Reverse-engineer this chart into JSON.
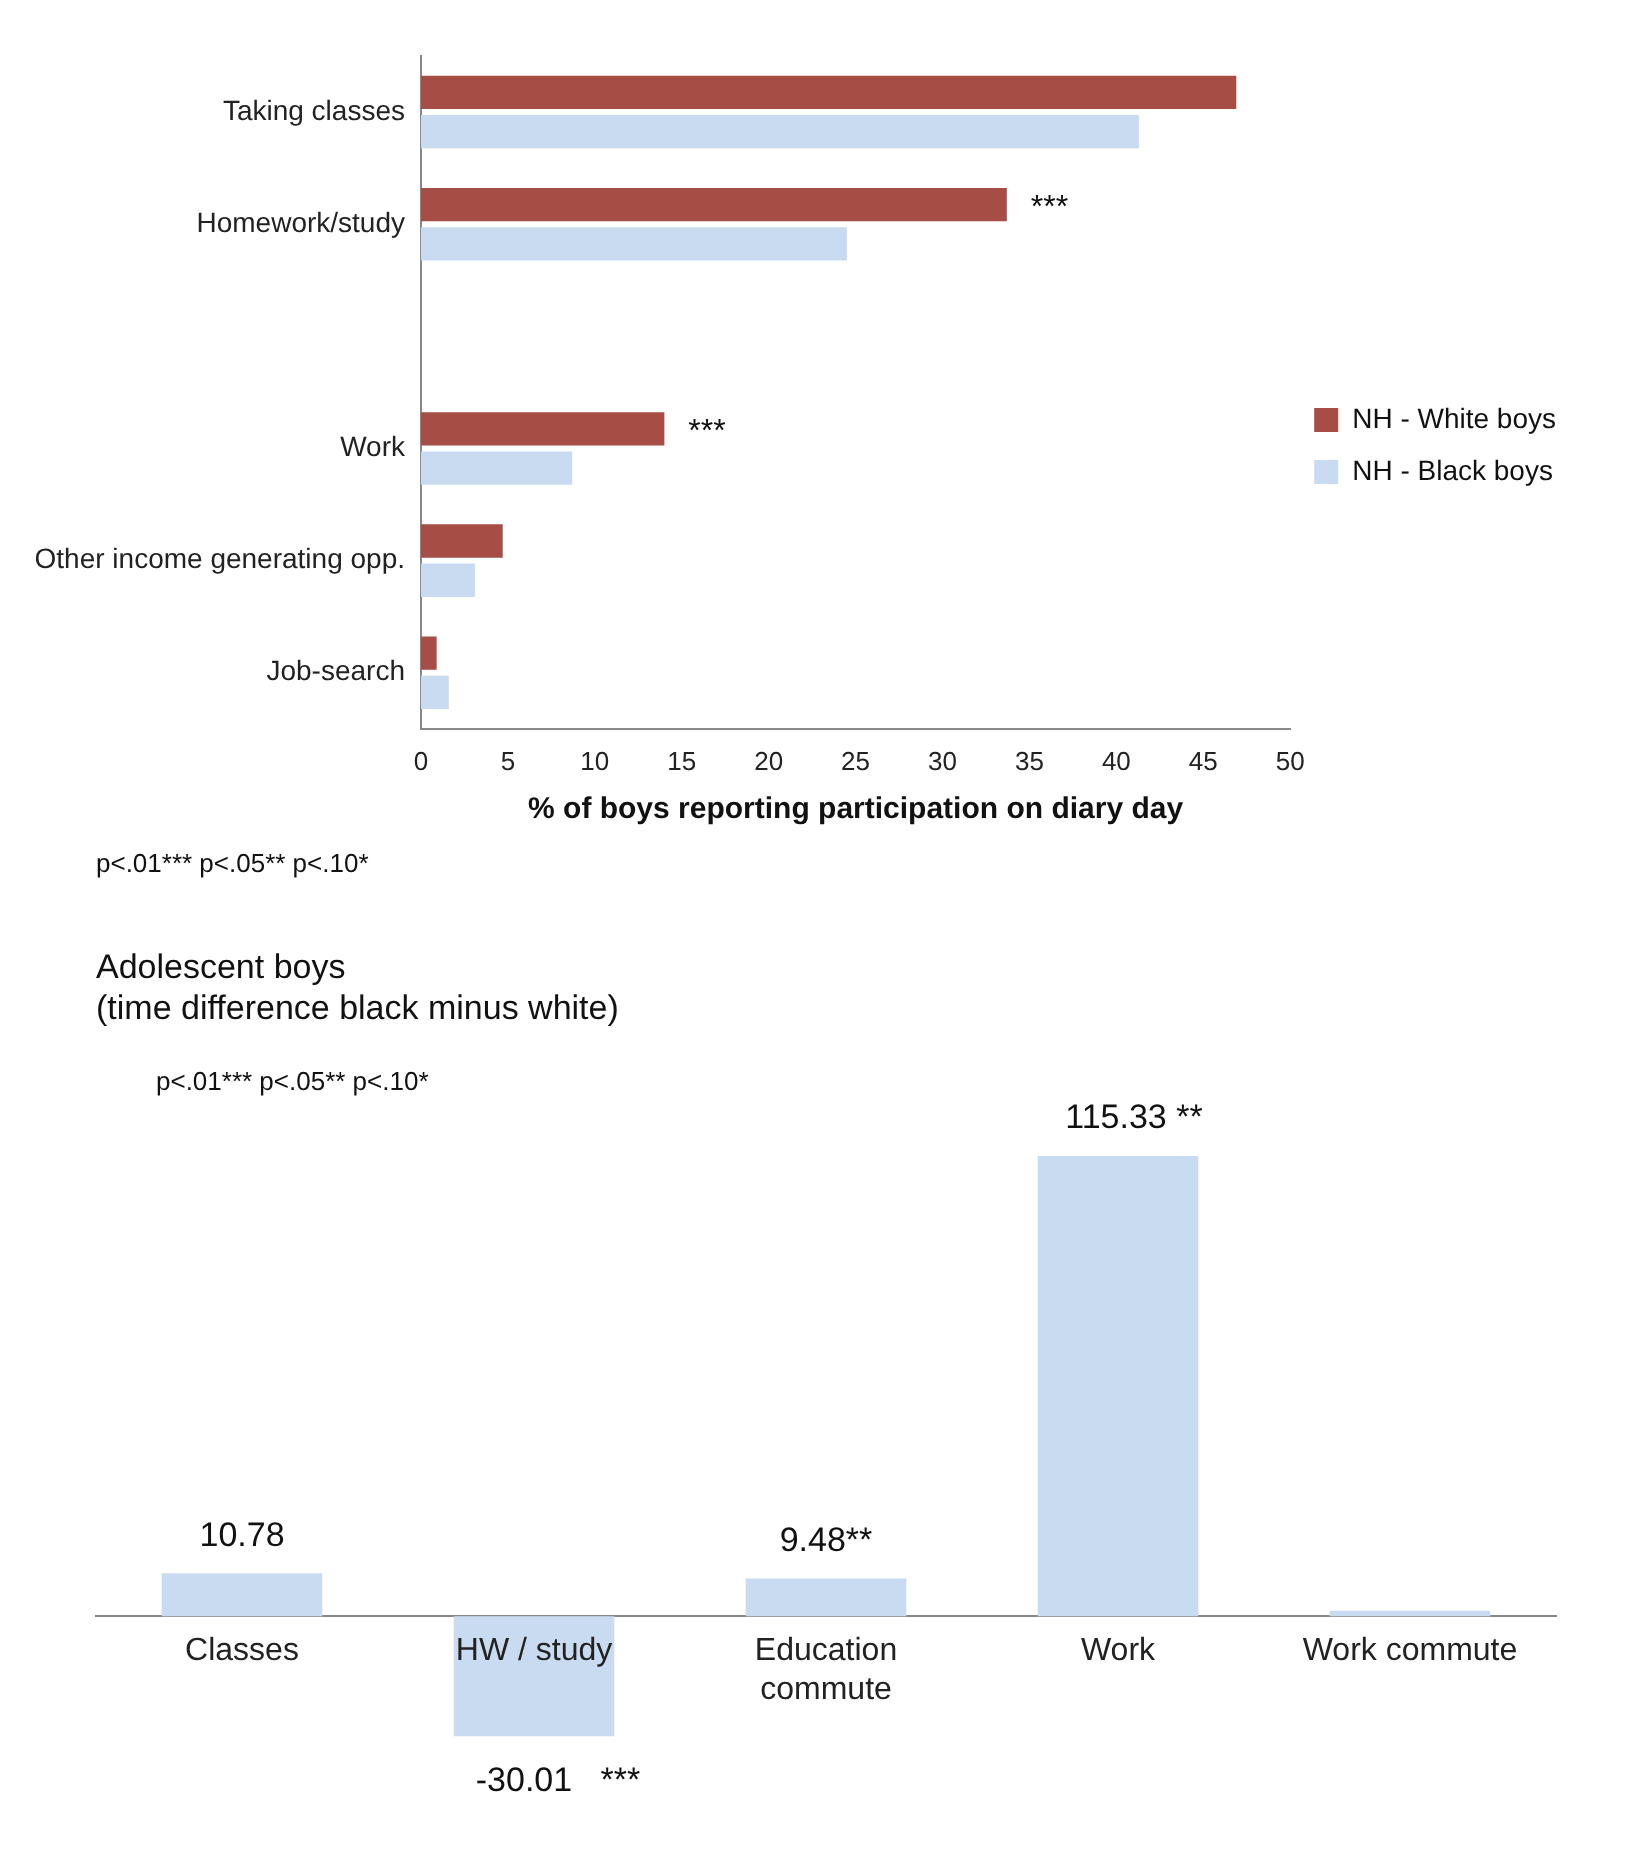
{
  "chart_data": [
    {
      "type": "bar",
      "orientation": "horizontal",
      "categories": [
        "Taking classes",
        "Homework/study",
        null,
        "Work",
        "Other income generating opp.",
        "Job-search"
      ],
      "series": [
        {
          "name": "NH - White boys",
          "color": "#a64d45",
          "values": [
            46.9,
            33.7,
            null,
            14.0,
            4.7,
            0.9
          ]
        },
        {
          "name": "NH - Black boys",
          "color": "#c9dbf1",
          "values": [
            41.3,
            24.5,
            null,
            8.7,
            3.1,
            1.6
          ]
        }
      ],
      "xlim": [
        0,
        50
      ],
      "xticks": [
        0,
        5,
        10,
        15,
        20,
        25,
        30,
        35,
        40,
        45,
        50
      ],
      "xlabel": "% of boys reporting participation on diary day",
      "legend": "right",
      "grid": false,
      "annotations": [
        {
          "text": "***",
          "x": 33.7,
          "y": "Homework/study"
        },
        {
          "text": "***",
          "x": 14.0,
          "y": "Work"
        },
        "p<.01*** p<.05** p<.10*"
      ]
    },
    {
      "type": "bar",
      "title": "Adolescent boys\n(time difference black minus white)",
      "categories": [
        "Classes",
        "HW / study",
        "Education commute",
        "Work",
        "Work commute"
      ],
      "values": [
        10.78,
        -30.01,
        9.48,
        115.33,
        1.4
      ],
      "color": "#c9dbf1",
      "value_labels": [
        "10.78",
        "-30.01   ***",
        "9.48**",
        "115.33 **",
        null
      ],
      "tick_labels": "x",
      "grid": false,
      "annotations": [
        "p<.01*** p<.05** p<.10*"
      ]
    }
  ]
}
